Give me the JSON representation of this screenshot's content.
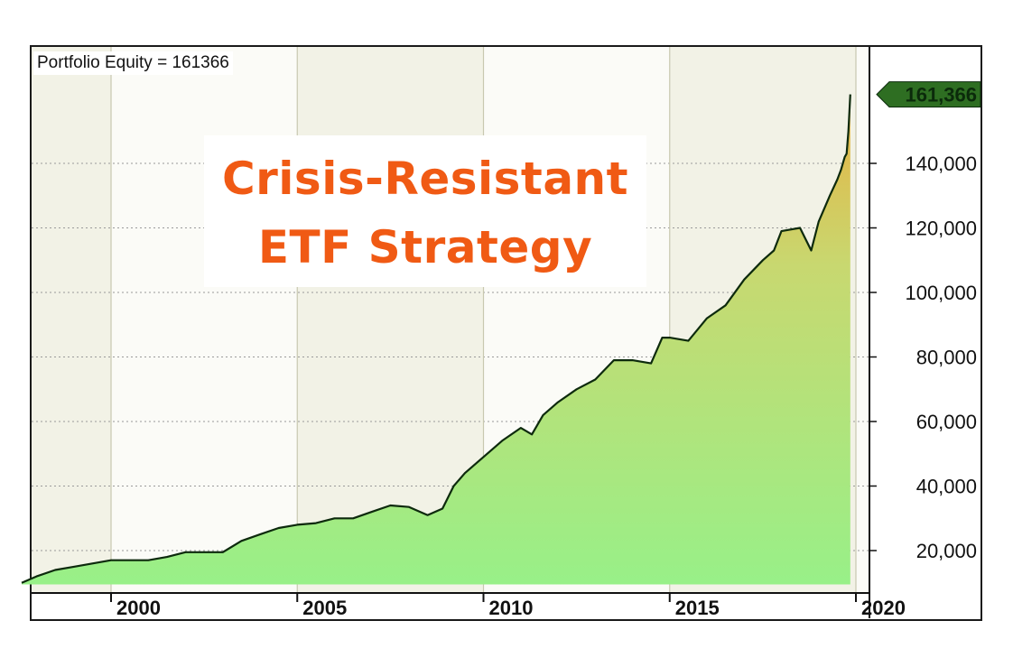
{
  "header": {
    "label": "Portfolio Equity = 161366"
  },
  "overlay_title": {
    "line1": "Crisis-Resistant",
    "line2": "ETF Strategy"
  },
  "last_value_badge": "161,366",
  "colors": {
    "line": "#0d2a0d",
    "fill_top": "#e8b040",
    "fill_bottom": "#98f088",
    "plot_bg_light": "#fbfbf7",
    "plot_bg_shaded": "#f2f2e6",
    "badge_bg": "#2e6e22",
    "title": "#f05a14"
  },
  "chart_data": {
    "type": "area",
    "title": "Portfolio Equity = 161366",
    "xlabel": "",
    "ylabel": "",
    "xlim": [
      1997.5,
      2020.3
    ],
    "ylim": [
      8000,
      170000
    ],
    "y_ticks": [
      20000,
      40000,
      60000,
      80000,
      100000,
      120000,
      140000
    ],
    "y_tick_labels": [
      "20,000",
      "40,000",
      "60,000",
      "80,000",
      "100,000",
      "120,000",
      "140,000"
    ],
    "x_ticks": [
      2000,
      2005,
      2010,
      2015,
      2020
    ],
    "x_tick_labels": [
      "2000",
      "2005",
      "2010",
      "2015",
      "2020"
    ],
    "grid": true,
    "series": [
      {
        "name": "Portfolio Equity",
        "x": [
          1997.6,
          1998.0,
          1998.5,
          1999.0,
          1999.5,
          2000.0,
          2000.5,
          2001.0,
          2001.5,
          2002.0,
          2002.5,
          2003.0,
          2003.5,
          2004.0,
          2004.5,
          2005.0,
          2005.5,
          2006.0,
          2006.5,
          2007.0,
          2007.5,
          2008.0,
          2008.5,
          2008.9,
          2009.2,
          2009.5,
          2010.0,
          2010.5,
          2011.0,
          2011.3,
          2011.6,
          2012.0,
          2012.5,
          2013.0,
          2013.5,
          2014.0,
          2014.5,
          2014.8,
          2015.0,
          2015.5,
          2016.0,
          2016.5,
          2017.0,
          2017.5,
          2017.8,
          2018.0,
          2018.5,
          2018.8,
          2019.0,
          2019.3,
          2019.5,
          2019.6,
          2019.7,
          2019.75,
          2019.8,
          2019.85
        ],
        "values": [
          10000,
          12000,
          14000,
          15000,
          16000,
          17000,
          17000,
          17000,
          18000,
          19500,
          19500,
          19500,
          23000,
          25000,
          27000,
          28000,
          28500,
          30000,
          30000,
          32000,
          34000,
          33500,
          31000,
          33000,
          40000,
          44000,
          49000,
          54000,
          58000,
          56000,
          62000,
          66000,
          70000,
          73000,
          79000,
          79000,
          78000,
          86000,
          86000,
          85000,
          92000,
          96000,
          104000,
          110000,
          113000,
          119000,
          120000,
          113000,
          122000,
          130000,
          135000,
          138000,
          142000,
          143000,
          150000,
          161366
        ]
      }
    ],
    "last_value": 161366,
    "legend": "none"
  }
}
